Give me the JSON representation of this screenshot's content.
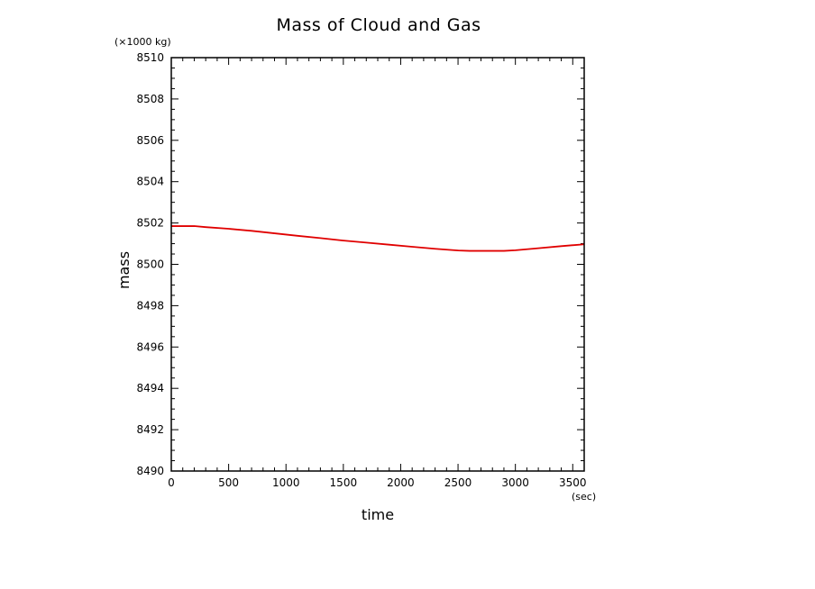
{
  "chart_data": {
    "type": "line",
    "title": "Mass of Cloud and Gas",
    "xlabel": "time",
    "ylabel": "mass",
    "x_unit": "(sec)",
    "y_unit": "(×1000 kg)",
    "xlim": [
      0,
      3600
    ],
    "ylim": [
      8490,
      8510
    ],
    "x_ticks": [
      0,
      500,
      1000,
      1500,
      2000,
      2500,
      3000,
      3500
    ],
    "y_ticks": [
      8490,
      8492,
      8494,
      8496,
      8498,
      8500,
      8502,
      8504,
      8506,
      8508,
      8510
    ],
    "grid": false,
    "series": [
      {
        "color": "#e00000",
        "x": [
          0,
          200,
          300,
          500,
          700,
          900,
          1100,
          1300,
          1500,
          1700,
          1900,
          2100,
          2300,
          2500,
          2600,
          2700,
          2800,
          2900,
          3000,
          3200,
          3400,
          3600
        ],
        "y": [
          8501.85,
          8501.85,
          8501.8,
          8501.72,
          8501.62,
          8501.5,
          8501.38,
          8501.27,
          8501.15,
          8501.05,
          8500.95,
          8500.85,
          8500.75,
          8500.67,
          8500.65,
          8500.65,
          8500.65,
          8500.65,
          8500.68,
          8500.78,
          8500.88,
          8500.97
        ]
      }
    ]
  }
}
